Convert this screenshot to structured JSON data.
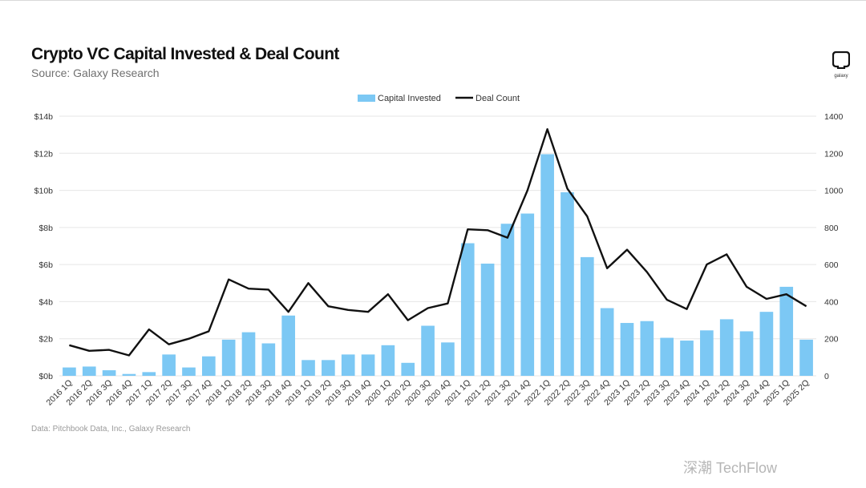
{
  "header": {
    "title": "Crypto VC Capital Invested & Deal Count",
    "subtitle": "Source: Galaxy Research",
    "logo_text": "galaxy"
  },
  "footer": {
    "note": "Data: Pitchbook Data, Inc., Galaxy Research",
    "watermark": "深潮 TechFlow"
  },
  "colors": {
    "bar": "#7cc8f4",
    "line": "#111111",
    "grid": "#e6e6e6"
  },
  "chart_data": {
    "type": "bar+line",
    "title": "Crypto VC Capital Invested & Deal Count",
    "categories": [
      "2016 1Q",
      "2016 2Q",
      "2016 3Q",
      "2016 4Q",
      "2017 1Q",
      "2017 2Q",
      "2017 3Q",
      "2017 4Q",
      "2018 1Q",
      "2018 2Q",
      "2018 3Q",
      "2018 4Q",
      "2019 1Q",
      "2019 2Q",
      "2019 3Q",
      "2019 4Q",
      "2020 1Q",
      "2020 2Q",
      "2020 3Q",
      "2020 4Q",
      "2021 1Q",
      "2021 2Q",
      "2021 3Q",
      "2021 4Q",
      "2022 1Q",
      "2022 2Q",
      "2022 3Q",
      "2022 4Q",
      "2023 1Q",
      "2023 2Q",
      "2023 3Q",
      "2023 4Q",
      "2024 1Q",
      "2024 2Q",
      "2024 3Q",
      "2024 4Q",
      "2025 1Q",
      "2025 2Q"
    ],
    "series": [
      {
        "name": "Capital Invested",
        "type": "bar",
        "axis": "left",
        "unit": "$b",
        "values": [
          0.45,
          0.5,
          0.3,
          0.1,
          0.2,
          1.15,
          0.45,
          1.05,
          1.95,
          2.35,
          1.75,
          3.25,
          0.85,
          0.85,
          1.15,
          1.15,
          1.65,
          0.7,
          2.7,
          1.8,
          7.15,
          6.05,
          8.2,
          8.75,
          11.95,
          9.9,
          6.4,
          3.65,
          2.85,
          2.95,
          2.05,
          1.9,
          2.45,
          3.05,
          2.4,
          3.45,
          4.8,
          1.95
        ]
      },
      {
        "name": "Deal Count",
        "type": "line",
        "axis": "right",
        "values": [
          165,
          135,
          140,
          110,
          250,
          170,
          200,
          240,
          520,
          470,
          465,
          345,
          500,
          375,
          355,
          345,
          440,
          300,
          365,
          390,
          790,
          785,
          745,
          1000,
          1330,
          1010,
          860,
          580,
          680,
          560,
          410,
          360,
          600,
          655,
          480,
          415,
          440,
          375
        ]
      }
    ],
    "y_left": {
      "min": 0,
      "max": 14,
      "ticks": [
        "$0b",
        "$2b",
        "$4b",
        "$6b",
        "$8b",
        "$10b",
        "$12b",
        "$14b"
      ]
    },
    "y_right": {
      "min": 0,
      "max": 1400,
      "ticks": [
        "0",
        "200",
        "400",
        "600",
        "800",
        "1000",
        "1200",
        "1400"
      ]
    },
    "legend": [
      "Capital Invested",
      "Deal Count"
    ],
    "legend_position": "top-center",
    "grid": true
  }
}
